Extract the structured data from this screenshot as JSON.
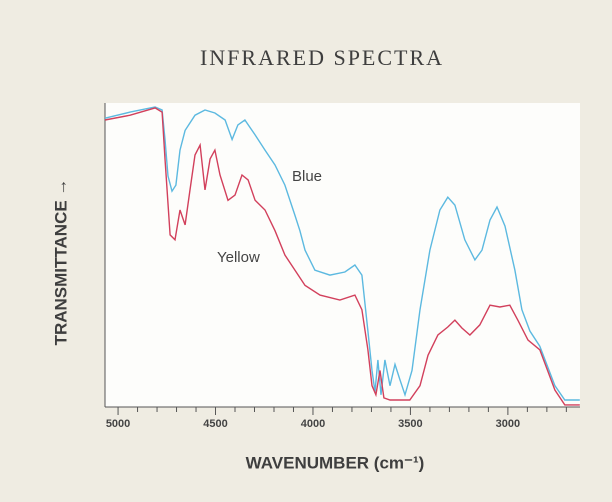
{
  "chart_data": {
    "type": "line",
    "title": "INFRARED SPECTRA",
    "xlabel": "WAVENUMBER (cm⁻¹)",
    "ylabel": "TRANSMITTANCE →",
    "xlim": [
      5067,
      2630
    ],
    "ylim": [
      0,
      100
    ],
    "xticks": [
      5000,
      4500,
      4000,
      3500,
      3000
    ],
    "xminorticks": [
      4900,
      4800,
      4700,
      4600,
      4400,
      4300,
      4200,
      4100,
      3900,
      3800,
      3700,
      3600,
      3400,
      3300,
      3200,
      3100,
      2900,
      2800,
      2700
    ],
    "series": [
      {
        "name": "Blue",
        "color": "#5cb9e0",
        "x": [
          5067,
          4938,
          4810,
          4774,
          4759,
          4744,
          4723,
          4703,
          4682,
          4656,
          4605,
          4554,
          4503,
          4451,
          4415,
          4385,
          4349,
          4297,
          4246,
          4195,
          4144,
          4092,
          4067,
          4041,
          3990,
          3913,
          3836,
          3785,
          3749,
          3718,
          3697,
          3682,
          3667,
          3651,
          3631,
          3605,
          3579,
          3554,
          3528,
          3492,
          3451,
          3400,
          3349,
          3308,
          3272,
          3221,
          3169,
          3133,
          3092,
          3056,
          3015,
          2964,
          2928,
          2887,
          2836,
          2759,
          2708,
          2631
        ],
        "values": [
          95,
          97,
          98.7,
          97.7,
          88,
          76,
          71,
          73,
          84.5,
          91,
          96,
          97.7,
          96.7,
          94.4,
          88,
          92.8,
          94.4,
          89.5,
          84.5,
          79.6,
          73,
          63,
          58,
          51.6,
          45,
          43.4,
          44.4,
          46.7,
          43.4,
          25,
          12,
          5,
          15.5,
          4,
          15.5,
          7,
          14,
          9,
          4,
          12,
          32,
          51.6,
          64.8,
          69,
          66.4,
          55,
          48.4,
          51.6,
          61.5,
          65.8,
          59.5,
          45,
          32,
          25,
          20,
          7,
          2.3,
          2.3
        ]
      },
      {
        "name": "Yellow",
        "color": "#d2405c",
        "x": [
          5067,
          4938,
          4810,
          4774,
          4759,
          4733,
          4708,
          4682,
          4656,
          4631,
          4605,
          4579,
          4554,
          4528,
          4503,
          4477,
          4436,
          4400,
          4364,
          4333,
          4297,
          4246,
          4195,
          4144,
          4092,
          4041,
          3964,
          3862,
          3785,
          3749,
          3718,
          3697,
          3677,
          3656,
          3636,
          3605,
          3554,
          3503,
          3451,
          3410,
          3359,
          3308,
          3272,
          3236,
          3195,
          3144,
          3092,
          3041,
          2990,
          2949,
          2897,
          2836,
          2759,
          2708,
          2631
        ],
        "values": [
          94.4,
          96,
          98.4,
          97,
          81.6,
          56.6,
          55,
          64.8,
          59.9,
          71.4,
          82.9,
          86.2,
          71.4,
          81.6,
          84.5,
          76.3,
          68,
          69.7,
          76.3,
          74.7,
          68,
          64.8,
          58,
          50,
          45,
          40,
          36.8,
          35.2,
          36.8,
          32,
          18.8,
          7,
          4,
          12,
          3,
          2.3,
          2.3,
          2.3,
          7,
          17,
          23.7,
          26.3,
          28.6,
          26,
          23.7,
          27,
          33.5,
          32.9,
          33.5,
          28.6,
          22,
          18.8,
          5.6,
          0.7,
          0.7
        ]
      }
    ]
  }
}
